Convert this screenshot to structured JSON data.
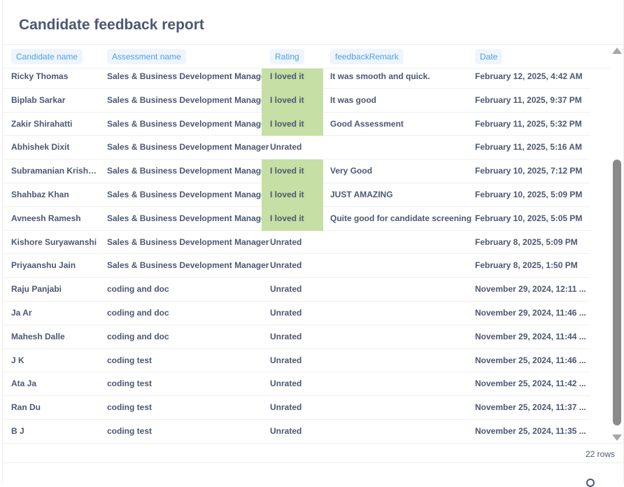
{
  "title": "Candidate feedback report",
  "columns": [
    "Candidate name",
    "Assessment name",
    "Rating",
    "feedbackRemark",
    "Date"
  ],
  "rows": [
    [
      "Ricky Thomas",
      "Sales & Business Development Manager",
      "I loved it",
      "It was smooth and quick.",
      "February 12, 2025, 4:42 AM"
    ],
    [
      "Biplab Sarkar",
      "Sales & Business Development Manager",
      "I loved it",
      "It was good",
      "February 11, 2025, 9:37 PM"
    ],
    [
      "Zakir Shirahatti",
      "Sales & Business Development Manager",
      "I loved it",
      "Good Assessment",
      "February 11, 2025, 5:32 PM"
    ],
    [
      "Abhishek Dixit",
      "Sales & Business Development Manager",
      "Unrated",
      "",
      "February 11, 2025, 5:16 AM"
    ],
    [
      "Subramanian Krishn...",
      "Sales & Business Development Manager",
      "I loved it",
      "Very Good",
      "February 10, 2025, 7:12 PM"
    ],
    [
      "Shahbaz Khan",
      "Sales & Business Development Manager",
      "I loved it",
      "JUST AMAZING",
      "February 10, 2025, 5:09 PM"
    ],
    [
      "Avneesh Ramesh",
      "Sales & Business Development Manager",
      "I loved it",
      "Quite good for candidate screening",
      "February 10, 2025, 5:05 PM"
    ],
    [
      "Kishore Suryawanshi",
      "Sales & Business Development Manager",
      "Unrated",
      "",
      "February 8, 2025, 5:09 PM"
    ],
    [
      "Priyaanshu Jain",
      "Sales & Business Development Manager",
      "Unrated",
      "",
      "February 8, 2025, 1:50 PM"
    ],
    [
      "Raju Panjabi",
      "coding and doc",
      "Unrated",
      "",
      "November 29, 2024, 12:11 ..."
    ],
    [
      "Ja Ar",
      "coding and doc",
      "Unrated",
      "",
      "November 29, 2024, 11:46 ..."
    ],
    [
      "Mahesh Dalle",
      "coding and doc",
      "Unrated",
      "",
      "November 29, 2024, 11:44 ..."
    ],
    [
      "J K",
      "coding test",
      "Unrated",
      "",
      "November 25, 2024, 11:46 ..."
    ],
    [
      "Ata Ja",
      "coding test",
      "Unrated",
      "",
      "November 25, 2024, 11:42 ..."
    ],
    [
      "Ran Du",
      "coding test",
      "Unrated",
      "",
      "November 25, 2024, 11:37 ..."
    ],
    [
      "B J",
      "coding test",
      "Unrated",
      "",
      "November 25, 2024, 11:35 ..."
    ]
  ],
  "row_count": "22 rows",
  "colors": {
    "loved_bg": "#c5dfa4",
    "header_text": "#509ee3",
    "header_bg": "#eef5fc"
  }
}
